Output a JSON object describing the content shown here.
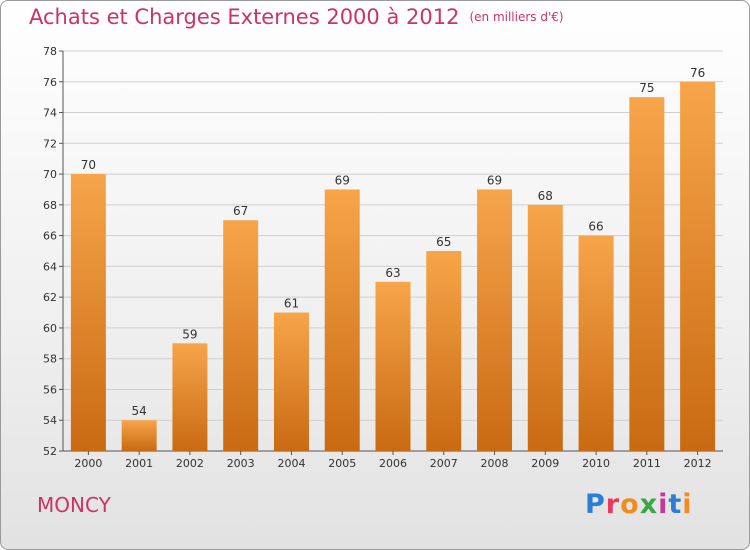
{
  "title": "Achats et Charges Externes 2000 à 2012",
  "subtitle": "(en milliers d'€)",
  "town": "MONCY",
  "brand": {
    "letters": [
      "P",
      "r",
      "o",
      "x",
      "i",
      "t",
      "i"
    ],
    "colors": [
      "#2a7fd4",
      "#e63c5a",
      "#f08c1e",
      "#3aa64a",
      "#c23a96",
      "#2a7fd4",
      "#f08c1e"
    ]
  },
  "colors": {
    "accent": "#cc3366",
    "bar_light": "#f7a54a",
    "bar_dark": "#c96a12",
    "axis": "#555555",
    "grid": "#cfcfcf"
  },
  "chart_data": {
    "type": "bar",
    "categories": [
      "2000",
      "2001",
      "2002",
      "2003",
      "2004",
      "2005",
      "2006",
      "2007",
      "2008",
      "2009",
      "2010",
      "2011",
      "2012"
    ],
    "values": [
      70,
      54,
      59,
      67,
      61,
      69,
      63,
      65,
      69,
      68,
      66,
      75,
      76
    ],
    "ylim": [
      52,
      78
    ],
    "yticks": [
      52,
      54,
      56,
      58,
      60,
      62,
      64,
      66,
      68,
      70,
      72,
      74,
      76,
      78
    ],
    "title": "Achats et Charges Externes 2000 à 2012",
    "xlabel": "",
    "ylabel": "",
    "grid": true
  }
}
